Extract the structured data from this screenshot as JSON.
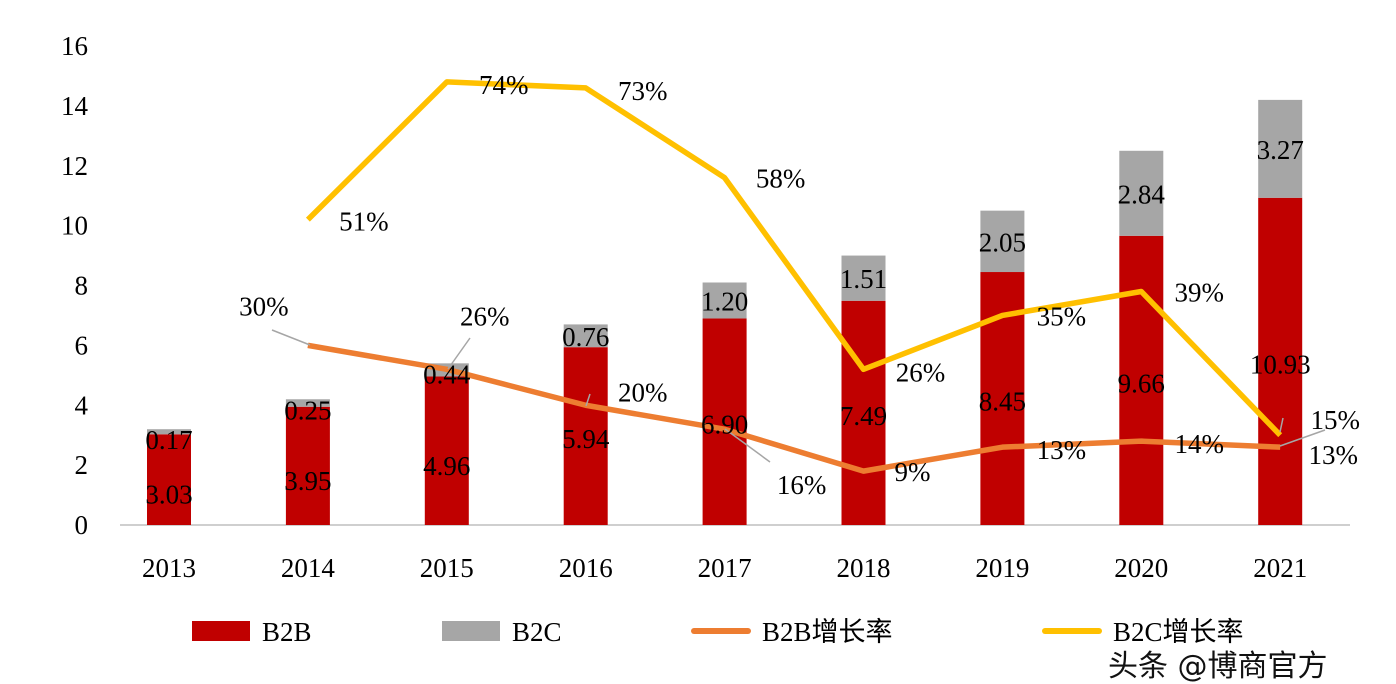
{
  "chart_data": {
    "type": "bar",
    "categories": [
      "2013",
      "2014",
      "2015",
      "2016",
      "2017",
      "2018",
      "2019",
      "2020",
      "2021"
    ],
    "ylim": [
      0,
      16
    ],
    "yticks": [
      0,
      2,
      4,
      6,
      8,
      10,
      12,
      14,
      16
    ],
    "secondary_ylim_percent": [
      0,
      80
    ],
    "grid": false,
    "legend_position": "bottom",
    "series": [
      {
        "name": "B2B",
        "kind": "stacked-bar",
        "color": "#C00000",
        "values": [
          3.03,
          3.95,
          4.96,
          5.94,
          6.9,
          7.49,
          8.45,
          9.66,
          10.93
        ],
        "labels": [
          "3.03",
          "3.95",
          "4.96",
          "5.94",
          "6.90",
          "7.49",
          "8.45",
          "9.66",
          "10.93"
        ]
      },
      {
        "name": "B2C",
        "kind": "stacked-bar",
        "color": "#A6A6A6",
        "values": [
          0.17,
          0.25,
          0.44,
          0.76,
          1.2,
          1.51,
          2.05,
          2.84,
          3.27
        ],
        "labels": [
          "0.17",
          "0.25",
          "0.44",
          "0.76",
          "1.20",
          "1.51",
          "2.05",
          "2.84",
          "3.27"
        ]
      },
      {
        "name": "B2B增长率",
        "kind": "line",
        "axis": "secondary",
        "color": "#ED7D31",
        "values": [
          null,
          30,
          26,
          20,
          16,
          9,
          13,
          14,
          13
        ],
        "labels": [
          "",
          "30%",
          "26%",
          "20%",
          "16%",
          "9%",
          "13%",
          "14%",
          "13%"
        ]
      },
      {
        "name": "B2C增长率",
        "kind": "line",
        "axis": "secondary",
        "color": "#FFC000",
        "values": [
          null,
          51,
          74,
          73,
          58,
          26,
          35,
          39,
          15
        ],
        "labels": [
          "",
          "51%",
          "74%",
          "73%",
          "58%",
          "26%",
          "35%",
          "39%",
          "15%"
        ]
      }
    ]
  },
  "watermark": "头条 @博商官方"
}
